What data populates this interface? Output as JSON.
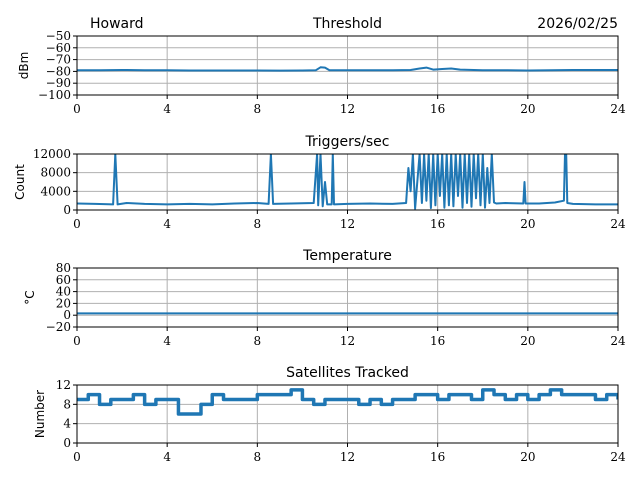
{
  "header": {
    "station": "Howard",
    "date": "2026/02/25"
  },
  "colors": {
    "line": "#1f77b4",
    "grid": "#b0b0b0"
  },
  "chart_data": [
    {
      "type": "line",
      "title": "Threshold",
      "ylabel": "dBm",
      "xlim": [
        0,
        24
      ],
      "ylim": [
        -100,
        -50
      ],
      "xticks": [
        0,
        4,
        8,
        12,
        16,
        20,
        24
      ],
      "yticks": [
        -100,
        -90,
        -80,
        -70,
        -60,
        -50
      ],
      "ytick_labels": [
        "−100",
        "−90",
        "−80",
        "−70",
        "−60",
        "−50"
      ],
      "grid": true,
      "x": [
        0,
        1,
        2,
        3,
        4,
        5,
        6,
        7,
        8,
        9,
        10,
        10.6,
        10.8,
        11.0,
        11.2,
        12,
        13,
        14,
        14.8,
        15.2,
        15.5,
        15.8,
        16.2,
        16.6,
        17,
        18,
        19,
        20,
        21,
        22,
        23,
        24
      ],
      "y": [
        -79,
        -79,
        -78.8,
        -79,
        -79,
        -79.2,
        -79.2,
        -79.2,
        -79.2,
        -79.3,
        -79.2,
        -79,
        -76.5,
        -76.8,
        -79,
        -79,
        -79,
        -79,
        -78.8,
        -77.5,
        -76.8,
        -78.5,
        -78,
        -77.5,
        -78.5,
        -79,
        -79,
        -79.2,
        -79,
        -78.8,
        -78.8,
        -78.8
      ]
    },
    {
      "type": "line",
      "title": "Triggers/sec",
      "ylabel": "Count",
      "xlim": [
        0,
        24
      ],
      "ylim": [
        0,
        12000
      ],
      "xticks": [
        0,
        4,
        8,
        12,
        16,
        20,
        24
      ],
      "yticks": [
        0,
        4000,
        8000,
        12000
      ],
      "ytick_labels": [
        "0",
        "4000",
        "8000",
        "12000"
      ],
      "grid": true,
      "x": [
        0,
        0.8,
        1.6,
        1.7,
        1.8,
        2.2,
        3,
        4,
        5,
        6,
        7,
        8,
        8.5,
        8.6,
        8.7,
        9.5,
        10.5,
        10.65,
        10.7,
        10.8,
        10.9,
        11.0,
        11.1,
        11.3,
        11.35,
        11.4,
        12,
        13,
        14,
        14.6,
        14.7,
        14.8,
        14.9,
        15.0,
        15.2,
        15.3,
        15.4,
        15.5,
        15.6,
        15.7,
        15.8,
        15.9,
        16.0,
        16.1,
        16.2,
        16.3,
        16.4,
        16.5,
        16.6,
        16.7,
        16.8,
        16.9,
        17.0,
        17.1,
        17.2,
        17.3,
        17.4,
        17.5,
        17.6,
        17.7,
        17.8,
        17.9,
        18.0,
        18.1,
        18.2,
        18.3,
        18.4,
        18.5,
        18.6,
        19,
        19.8,
        19.85,
        19.9,
        20.5,
        21.2,
        21.6,
        21.65,
        21.7,
        21.75,
        22,
        23,
        24
      ],
      "y": [
        1400,
        1300,
        1200,
        12000,
        1200,
        1500,
        1300,
        1200,
        1300,
        1200,
        1400,
        1500,
        1300,
        12000,
        1300,
        1400,
        1500,
        12000,
        1000,
        12000,
        800,
        6000,
        1200,
        1200,
        12000,
        1200,
        1300,
        1400,
        1300,
        1500,
        9000,
        4000,
        12000,
        300,
        12000,
        1500,
        12000,
        2000,
        12000,
        400,
        12000,
        1000,
        12000,
        3000,
        12000,
        500,
        12000,
        1000,
        12000,
        800,
        12000,
        3000,
        12000,
        500,
        12000,
        1500,
        12000,
        700,
        12000,
        2500,
        12000,
        1000,
        12000,
        500,
        9000,
        1500,
        12000,
        1600,
        1400,
        1500,
        1400,
        6000,
        1400,
        1400,
        1600,
        2000,
        12000,
        12000,
        1500,
        1300,
        1200,
        1200
      ]
    },
    {
      "type": "line",
      "title": "Temperature",
      "ylabel": "°C",
      "xlim": [
        0,
        24
      ],
      "ylim": [
        -20,
        80
      ],
      "xticks": [
        0,
        4,
        8,
        12,
        16,
        20,
        24
      ],
      "yticks": [
        -20,
        0,
        20,
        40,
        60,
        80
      ],
      "ytick_labels": [
        "−20",
        "0",
        "20",
        "40",
        "60",
        "80"
      ],
      "grid": true,
      "x": [
        0,
        24
      ],
      "y": [
        3,
        3
      ]
    },
    {
      "type": "line",
      "title": "Satellites Tracked",
      "ylabel": "Number",
      "xlim": [
        0,
        24
      ],
      "ylim": [
        0,
        12
      ],
      "xticks": [
        0,
        4,
        8,
        12,
        16,
        20,
        24
      ],
      "yticks": [
        0,
        4,
        8,
        12
      ],
      "ytick_labels": [
        "0",
        "4",
        "8",
        "12"
      ],
      "grid": true,
      "x": [
        0,
        0.5,
        1,
        1.5,
        2,
        2.5,
        3,
        3.5,
        4,
        4.5,
        5,
        5.5,
        6,
        6.5,
        7,
        7.5,
        8,
        8.5,
        9,
        9.5,
        10,
        10.5,
        11,
        11.5,
        12,
        12.5,
        13,
        13.5,
        14,
        14.5,
        15,
        15.5,
        16,
        16.5,
        17,
        17.5,
        18,
        18.5,
        19,
        19.5,
        20,
        20.5,
        21,
        21.5,
        22,
        22.5,
        23,
        23.5,
        24
      ],
      "y": [
        9,
        10,
        8,
        9,
        9,
        10,
        8,
        9,
        9,
        6,
        6,
        8,
        10,
        9,
        9,
        9,
        10,
        10,
        10,
        11,
        9,
        8,
        9,
        9,
        9,
        8,
        9,
        8,
        9,
        9,
        10,
        10,
        9,
        10,
        10,
        9,
        11,
        10,
        9,
        10,
        9,
        10,
        11,
        10,
        10,
        10,
        9,
        10,
        9
      ]
    }
  ]
}
